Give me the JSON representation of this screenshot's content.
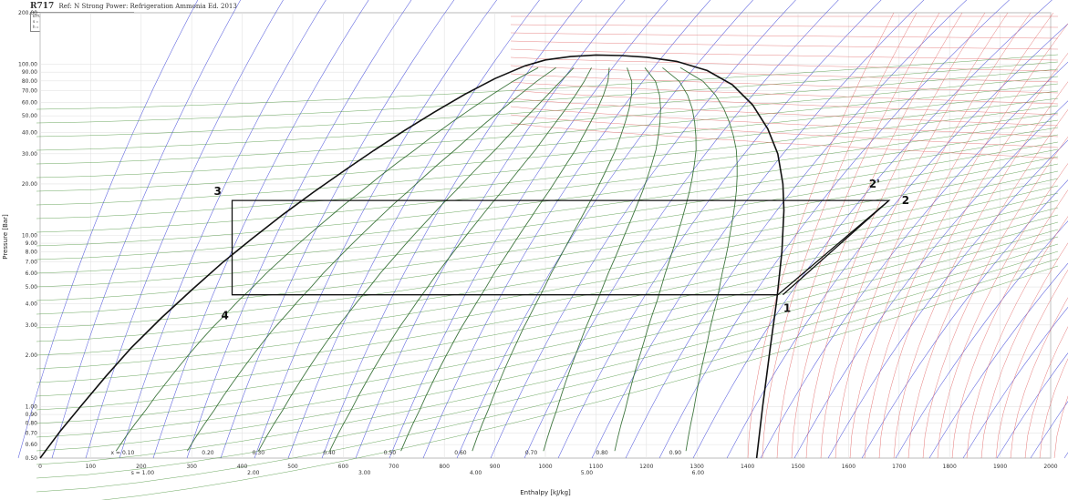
{
  "header": {
    "refrigerant": "R717",
    "subtitle": "Ref: N Strong Power: Refrigeration Ammonia Ed. 2013",
    "info_lines": [
      "DTU, Department of Energy Engineering",
      "s = 0.0 kJ/(kg K) for sat. liquid at -40 °C",
      "h = 0.0 kJ/kg for sat. liquid at -40 °C"
    ]
  },
  "chart_data": {
    "type": "line",
    "title": "",
    "xlabel": "Enthalpy [kJ/kg]",
    "ylabel": "Pressure [Bar]",
    "xlim": [
      0,
      2000
    ],
    "ylim": [
      0.5,
      200
    ],
    "yscale": "log",
    "grid": true,
    "x_ticks": [
      0,
      100,
      200,
      300,
      400,
      500,
      600,
      700,
      800,
      900,
      1000,
      1100,
      1200,
      1300,
      1400,
      1500,
      1600,
      1700,
      1800,
      1900,
      2000
    ],
    "y_ticks": [
      {
        "value": 0.5,
        "label": "0.50"
      },
      {
        "value": 0.6,
        "label": "0.60"
      },
      {
        "value": 0.7,
        "label": "0.70"
      },
      {
        "value": 0.8,
        "label": "0.80"
      },
      {
        "value": 0.9,
        "label": "0.90"
      },
      {
        "value": 1,
        "label": "1.00"
      },
      {
        "value": 2,
        "label": "2.00"
      },
      {
        "value": 3,
        "label": "3.00"
      },
      {
        "value": 4,
        "label": "4.00"
      },
      {
        "value": 5,
        "label": "5.00"
      },
      {
        "value": 6,
        "label": "6.00"
      },
      {
        "value": 7,
        "label": "7.00"
      },
      {
        "value": 8,
        "label": "8.00"
      },
      {
        "value": 9,
        "label": "9.00"
      },
      {
        "value": 10,
        "label": "10.00"
      },
      {
        "value": 20,
        "label": "20.00"
      },
      {
        "value": 30,
        "label": "30.00"
      },
      {
        "value": 40,
        "label": "40.00"
      },
      {
        "value": 50,
        "label": "50.00"
      },
      {
        "value": 60,
        "label": "60.00"
      },
      {
        "value": 70,
        "label": "70.00"
      },
      {
        "value": 80,
        "label": "80.00"
      },
      {
        "value": 90,
        "label": "90.00"
      },
      {
        "value": 100,
        "label": "100.00"
      },
      {
        "value": 200,
        "label": "200.00"
      }
    ],
    "quality_labels": [
      {
        "h": 140,
        "text": "x = 0.10"
      },
      {
        "h": 320,
        "text": "0.20"
      },
      {
        "h": 420,
        "text": "0.30"
      },
      {
        "h": 560,
        "text": "0.40"
      },
      {
        "h": 680,
        "text": "0.50"
      },
      {
        "h": 820,
        "text": "0.60"
      },
      {
        "h": 960,
        "text": "0.70"
      },
      {
        "h": 1100,
        "text": "0.80"
      },
      {
        "h": 1245,
        "text": "0.90"
      }
    ],
    "blue_labels": [
      {
        "h": 180,
        "text": "s = 1.00"
      },
      {
        "h": 410,
        "text": "2.00"
      },
      {
        "h": 630,
        "text": "3.00"
      },
      {
        "h": 850,
        "text": "4.00"
      },
      {
        "h": 1070,
        "text": "5.00"
      },
      {
        "h": 1290,
        "text": "6.00"
      }
    ],
    "saturation_dome": {
      "liquid": [
        [
          0,
          0.5
        ],
        [
          40,
          0.72
        ],
        [
          80,
          1.0
        ],
        [
          130,
          1.5
        ],
        [
          180,
          2.2
        ],
        [
          240,
          3.3
        ],
        [
          300,
          4.8
        ],
        [
          360,
          6.9
        ],
        [
          420,
          9.6
        ],
        [
          480,
          13.2
        ],
        [
          540,
          17.8
        ],
        [
          600,
          23.7
        ],
        [
          660,
          31.3
        ],
        [
          720,
          40.8
        ],
        [
          780,
          52.5
        ],
        [
          840,
          66.6
        ],
        [
          900,
          82.5
        ],
        [
          960,
          98.0
        ],
        [
          1000,
          106.0
        ],
        [
          1050,
          111.0
        ],
        [
          1100,
          113.3
        ]
      ],
      "vapor": [
        [
          1100,
          113.3
        ],
        [
          1150,
          112.5
        ],
        [
          1200,
          110.0
        ],
        [
          1260,
          104.0
        ],
        [
          1320,
          92.0
        ],
        [
          1370,
          76.0
        ],
        [
          1410,
          58.0
        ],
        [
          1440,
          42.0
        ],
        [
          1460,
          30.0
        ],
        [
          1470,
          20.0
        ],
        [
          1472,
          14.0
        ],
        [
          1468,
          8.0
        ],
        [
          1458,
          4.2
        ],
        [
          1445,
          2.2
        ],
        [
          1430,
          1.0
        ],
        [
          1418,
          0.5
        ]
      ]
    },
    "cycle": {
      "points": [
        {
          "label": "1",
          "h": 1460,
          "p": 4.5
        },
        {
          "label": "2",
          "h": 1680,
          "p": 16.0
        },
        {
          "label": "2'",
          "h": 1680,
          "p": 16.0
        },
        {
          "label": "3",
          "h": 380,
          "p": 16.0
        },
        {
          "label": "4",
          "h": 380,
          "p": 4.5
        }
      ],
      "path": [
        [
          1460,
          4.5
        ],
        [
          1680,
          16.0
        ],
        [
          1473,
          16.0
        ],
        [
          380,
          16.0
        ],
        [
          380,
          4.5
        ],
        [
          1460,
          4.5
        ]
      ],
      "compression_alt": [
        [
          1470,
          4.5
        ],
        [
          1680,
          16.0
        ]
      ]
    },
    "point_label_text": {
      "p1": "1",
      "p2": "2",
      "p2p": "2'",
      "p3": "3",
      "p4": "4"
    }
  }
}
